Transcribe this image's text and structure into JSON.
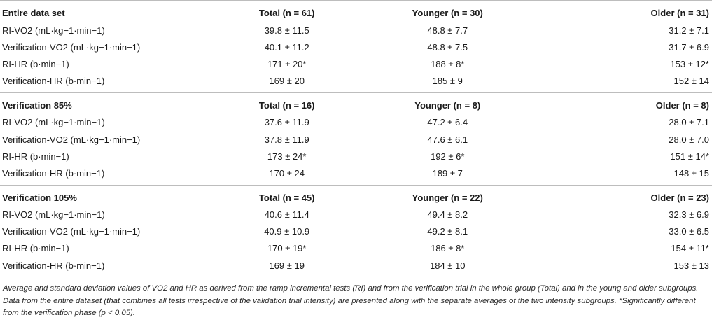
{
  "sections": [
    {
      "title": "Entire data set",
      "headers": {
        "total": "Total (n = 61)",
        "younger": "Younger (n = 30)",
        "older": "Older (n = 31)"
      },
      "rows": [
        {
          "label": "RI-VO2 (mL·kg−1·min−1)",
          "total": "39.8 ± 11.5",
          "younger": "48.8 ± 7.7",
          "older": "31.2 ± 7.1"
        },
        {
          "label": "Verification-VO2 (mL·kg−1·min−1)",
          "total": "40.1 ± 11.2",
          "younger": "48.8 ± 7.5",
          "older": "31.7 ± 6.9"
        },
        {
          "label": "RI-HR (b·min−1)",
          "total": "171 ± 20*",
          "younger": "188 ± 8*",
          "older": "153 ± 12*"
        },
        {
          "label": "Verification-HR (b·min−1)",
          "total": "169 ± 20",
          "younger": "185 ± 9",
          "older": "152 ± 14"
        }
      ]
    },
    {
      "title": "Verification 85%",
      "headers": {
        "total": "Total (n = 16)",
        "younger": "Younger (n = 8)",
        "older": "Older (n = 8)"
      },
      "rows": [
        {
          "label": "RI-VO2 (mL·kg−1·min−1)",
          "total": "37.6 ± 11.9",
          "younger": "47.2 ± 6.4",
          "older": "28.0 ± 7.1"
        },
        {
          "label": "Verification-VO2 (mL·kg−1·min−1)",
          "total": "37.8 ± 11.9",
          "younger": "47.6 ± 6.1",
          "older": "28.0 ± 7.0"
        },
        {
          "label": "RI-HR (b·min−1)",
          "total": "173 ± 24*",
          "younger": "192 ± 6*",
          "older": "151 ± 14*"
        },
        {
          "label": "Verification-HR (b·min−1)",
          "total": "170 ± 24",
          "younger": "189 ± 7",
          "older": "148 ± 15"
        }
      ]
    },
    {
      "title": "Verification 105%",
      "headers": {
        "total": "Total (n = 45)",
        "younger": "Younger (n = 22)",
        "older": "Older (n = 23)"
      },
      "rows": [
        {
          "label": "RI-VO2 (mL·kg−1·min−1)",
          "total": "40.6 ± 11.4",
          "younger": "49.4 ± 8.2",
          "older": "32.3 ± 6.9"
        },
        {
          "label": "Verification-VO2 (mL·kg−1·min−1)",
          "total": "40.9 ± 10.9",
          "younger": "49.2 ± 8.1",
          "older": "33.0 ± 6.5"
        },
        {
          "label": "RI-HR (b·min−1)",
          "total": "170 ± 19*",
          "younger": "186 ± 8*",
          "older": "154 ± 11*"
        },
        {
          "label": "Verification-HR (b·min−1)",
          "total": "169 ± 19",
          "younger": "184 ± 10",
          "older": "153 ± 13"
        }
      ]
    }
  ],
  "caption": "Average and standard deviation values of VO2 and HR as derived from the ramp incremental tests (RI) and from the verification trial in the whole group (Total) and in the young and older subgroups. Data from the entire dataset (that combines all tests irrespective of the validation trial intensity) are presented along with the separate averages of the two intensity subgroups. *Significantly different from the verification phase (p < 0.05)."
}
